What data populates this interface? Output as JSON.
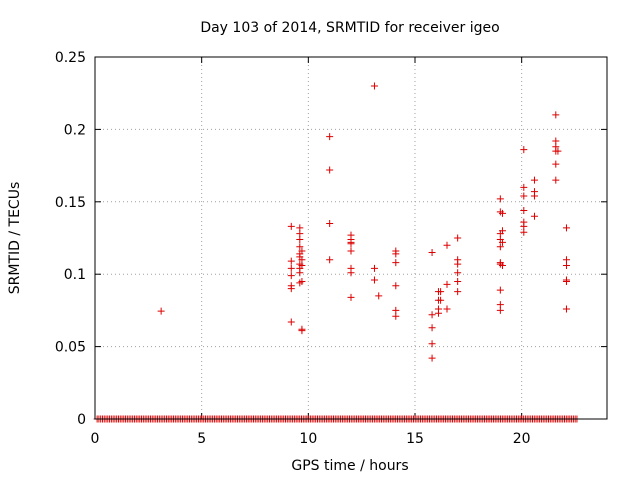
{
  "chart_data": {
    "type": "scatter",
    "title": "Day 103 of 2014, SRMTID for receiver igeo",
    "xlabel": "GPS time / hours",
    "ylabel": "SRMTID / TECUs",
    "xlim": [
      0,
      24
    ],
    "ylim": [
      0,
      0.25
    ],
    "grid": true,
    "x_ticks": [
      0,
      5,
      10,
      15,
      20
    ],
    "x_tick_labels": [
      "0",
      "5",
      "10",
      "15",
      "20"
    ],
    "y_ticks": [
      0,
      0.05,
      0.1,
      0.15,
      0.2,
      0.25
    ],
    "y_tick_labels": [
      "0",
      "0.05",
      "0.1",
      "0.15",
      "0.2",
      "0.25"
    ],
    "marker": "+",
    "color": "#dd0000",
    "zero_series": {
      "y": 0,
      "x_start": 0.1,
      "x_end": 22.6,
      "step": 0.0833,
      "gaps": []
    },
    "points": [
      [
        3.1,
        0.0745
      ],
      [
        9.2,
        0.133
      ],
      [
        9.2,
        0.109
      ],
      [
        9.2,
        0.104
      ],
      [
        9.2,
        0.099
      ],
      [
        9.2,
        0.092
      ],
      [
        9.2,
        0.09
      ],
      [
        9.2,
        0.067
      ],
      [
        9.6,
        0.132
      ],
      [
        9.6,
        0.128
      ],
      [
        9.6,
        0.124
      ],
      [
        9.6,
        0.119
      ],
      [
        9.6,
        0.114
      ],
      [
        9.6,
        0.112
      ],
      [
        9.6,
        0.107
      ],
      [
        9.6,
        0.104
      ],
      [
        9.6,
        0.101
      ],
      [
        9.6,
        0.094
      ],
      [
        9.7,
        0.116
      ],
      [
        9.7,
        0.11
      ],
      [
        9.7,
        0.106
      ],
      [
        9.7,
        0.095
      ],
      [
        9.7,
        0.062
      ],
      [
        9.7,
        0.061
      ],
      [
        11.0,
        0.195
      ],
      [
        11.0,
        0.172
      ],
      [
        11.0,
        0.135
      ],
      [
        11.0,
        0.11
      ],
      [
        12.0,
        0.127
      ],
      [
        12.0,
        0.124
      ],
      [
        12.0,
        0.122
      ],
      [
        12.0,
        0.121
      ],
      [
        12.0,
        0.116
      ],
      [
        12.0,
        0.104
      ],
      [
        12.0,
        0.101
      ],
      [
        12.0,
        0.084
      ],
      [
        13.1,
        0.23
      ],
      [
        13.1,
        0.104
      ],
      [
        13.1,
        0.096
      ],
      [
        13.3,
        0.085
      ],
      [
        14.1,
        0.116
      ],
      [
        14.1,
        0.114
      ],
      [
        14.1,
        0.108
      ],
      [
        14.1,
        0.092
      ],
      [
        14.1,
        0.075
      ],
      [
        14.1,
        0.071
      ],
      [
        15.8,
        0.115
      ],
      [
        15.8,
        0.072
      ],
      [
        15.8,
        0.063
      ],
      [
        15.8,
        0.052
      ],
      [
        15.8,
        0.042
      ],
      [
        16.1,
        0.088
      ],
      [
        16.1,
        0.082
      ],
      [
        16.1,
        0.076
      ],
      [
        16.1,
        0.073
      ],
      [
        16.2,
        0.088
      ],
      [
        16.2,
        0.082
      ],
      [
        16.5,
        0.12
      ],
      [
        16.5,
        0.093
      ],
      [
        16.5,
        0.076
      ],
      [
        17.0,
        0.125
      ],
      [
        17.0,
        0.11
      ],
      [
        17.0,
        0.107
      ],
      [
        17.0,
        0.101
      ],
      [
        17.0,
        0.095
      ],
      [
        17.0,
        0.088
      ],
      [
        19.0,
        0.152
      ],
      [
        19.0,
        0.143
      ],
      [
        19.0,
        0.128
      ],
      [
        19.0,
        0.124
      ],
      [
        19.0,
        0.119
      ],
      [
        19.0,
        0.108
      ],
      [
        19.0,
        0.107
      ],
      [
        19.0,
        0.089
      ],
      [
        19.0,
        0.079
      ],
      [
        19.0,
        0.075
      ],
      [
        19.1,
        0.142
      ],
      [
        19.1,
        0.13
      ],
      [
        19.1,
        0.122
      ],
      [
        19.1,
        0.106
      ],
      [
        20.1,
        0.186
      ],
      [
        20.1,
        0.16
      ],
      [
        20.1,
        0.154
      ],
      [
        20.1,
        0.144
      ],
      [
        20.1,
        0.136
      ],
      [
        20.1,
        0.133
      ],
      [
        20.1,
        0.129
      ],
      [
        20.6,
        0.165
      ],
      [
        20.6,
        0.157
      ],
      [
        20.6,
        0.154
      ],
      [
        20.6,
        0.14
      ],
      [
        21.6,
        0.21
      ],
      [
        21.6,
        0.192
      ],
      [
        21.6,
        0.188
      ],
      [
        21.6,
        0.185
      ],
      [
        21.6,
        0.176
      ],
      [
        21.6,
        0.165
      ],
      [
        21.7,
        0.185
      ],
      [
        22.1,
        0.132
      ],
      [
        22.1,
        0.11
      ],
      [
        22.1,
        0.106
      ],
      [
        22.1,
        0.096
      ],
      [
        22.1,
        0.095
      ],
      [
        22.1,
        0.076
      ]
    ]
  }
}
